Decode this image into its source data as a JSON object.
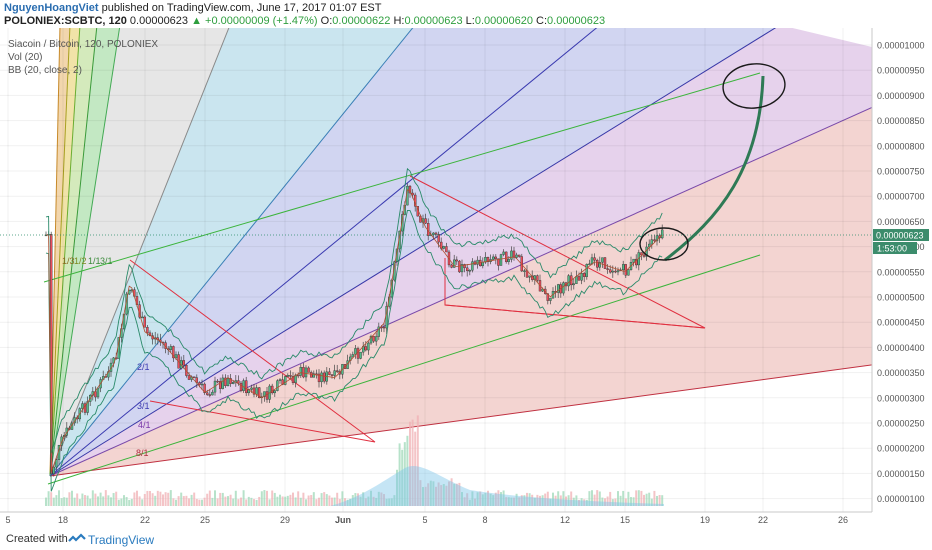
{
  "header": {
    "author": "NguyenHoangViet",
    "published": "published on TradingView.com, June 17, 2017 01:07 EST",
    "symbol": "POLONIEX:SCBTC, 120",
    "last": "0.00000623",
    "change": "▲ +0.00000009 (+1.47%)",
    "o_label": "O:",
    "o": "0.00000622",
    "h_label": "H:",
    "h": "0.00000623",
    "l_label": "L:",
    "l": "0.00000620",
    "c_label": "C:",
    "c": "0.00000623"
  },
  "legend": {
    "title": "Siacoin / Bitcoin, 120, POLONIEX",
    "vol": "Vol (20)",
    "bb": "BB (20, close, 2)"
  },
  "footer": {
    "created": "Created with",
    "brand": "TradingView"
  },
  "colors": {
    "up": "#53b987",
    "down": "#eb4d5c",
    "fan_green": "#3bb43b",
    "trend_red": "#e03040",
    "bb": "#2a8a6a",
    "arrow": "#2e7a55"
  },
  "chart_data": {
    "type": "candlestick",
    "y_unit": "BTC",
    "ylim": [
      9.5e-07,
      1.015e-05
    ],
    "yticks": [
      "0.00001000",
      "0.00000950",
      "0.00000900",
      "0.00000850",
      "0.00000800",
      "0.00000750",
      "0.00000700",
      "0.00000650",
      "0.00000600",
      "0.00000550",
      "0.00000500",
      "0.00000450",
      "0.00000400",
      "0.00000350",
      "0.00000300",
      "0.00000250",
      "0.00000200",
      "0.00000150",
      "0.00000100"
    ],
    "xticks": [
      "5",
      "18",
      "22",
      "25",
      "29",
      "Jun",
      "5",
      "8",
      "12",
      "15",
      "19",
      "22",
      "26"
    ],
    "price_tag": "0.00000623",
    "countdown_tag": "1:53:00",
    "fan_labels": [
      "1/3",
      "1/2",
      "1/1",
      "3/1",
      "2/1",
      "3/1",
      "4/1",
      "8/1"
    ],
    "approx_price_path": [
      [
        "May 17",
        1.45e-06
      ],
      [
        "May 18",
        2.2e-06
      ],
      [
        "May 20",
        3.7e-06
      ],
      [
        "May 21",
        5.3e-06
      ],
      [
        "May 22",
        4.3e-06
      ],
      [
        "May 23",
        4.1e-06
      ],
      [
        "May 25",
        3.1e-06
      ],
      [
        "May 26",
        3.4e-06
      ],
      [
        "May 28",
        3e-06
      ],
      [
        "May 30",
        3.5e-06
      ],
      [
        "Jun 1",
        3.4e-06
      ],
      [
        "Jun 3",
        4.5e-06
      ],
      [
        "Jun 4",
        7.2e-06
      ],
      [
        "Jun 5",
        6.4e-06
      ],
      [
        "Jun 7",
        5.6e-06
      ],
      [
        "Jun 9",
        5.8e-06
      ],
      [
        "Jun 11",
        5e-06
      ],
      [
        "Jun 13",
        5.7e-06
      ],
      [
        "Jun 15",
        5.5e-06
      ],
      [
        "Jun 16",
        6.23e-06
      ]
    ]
  }
}
